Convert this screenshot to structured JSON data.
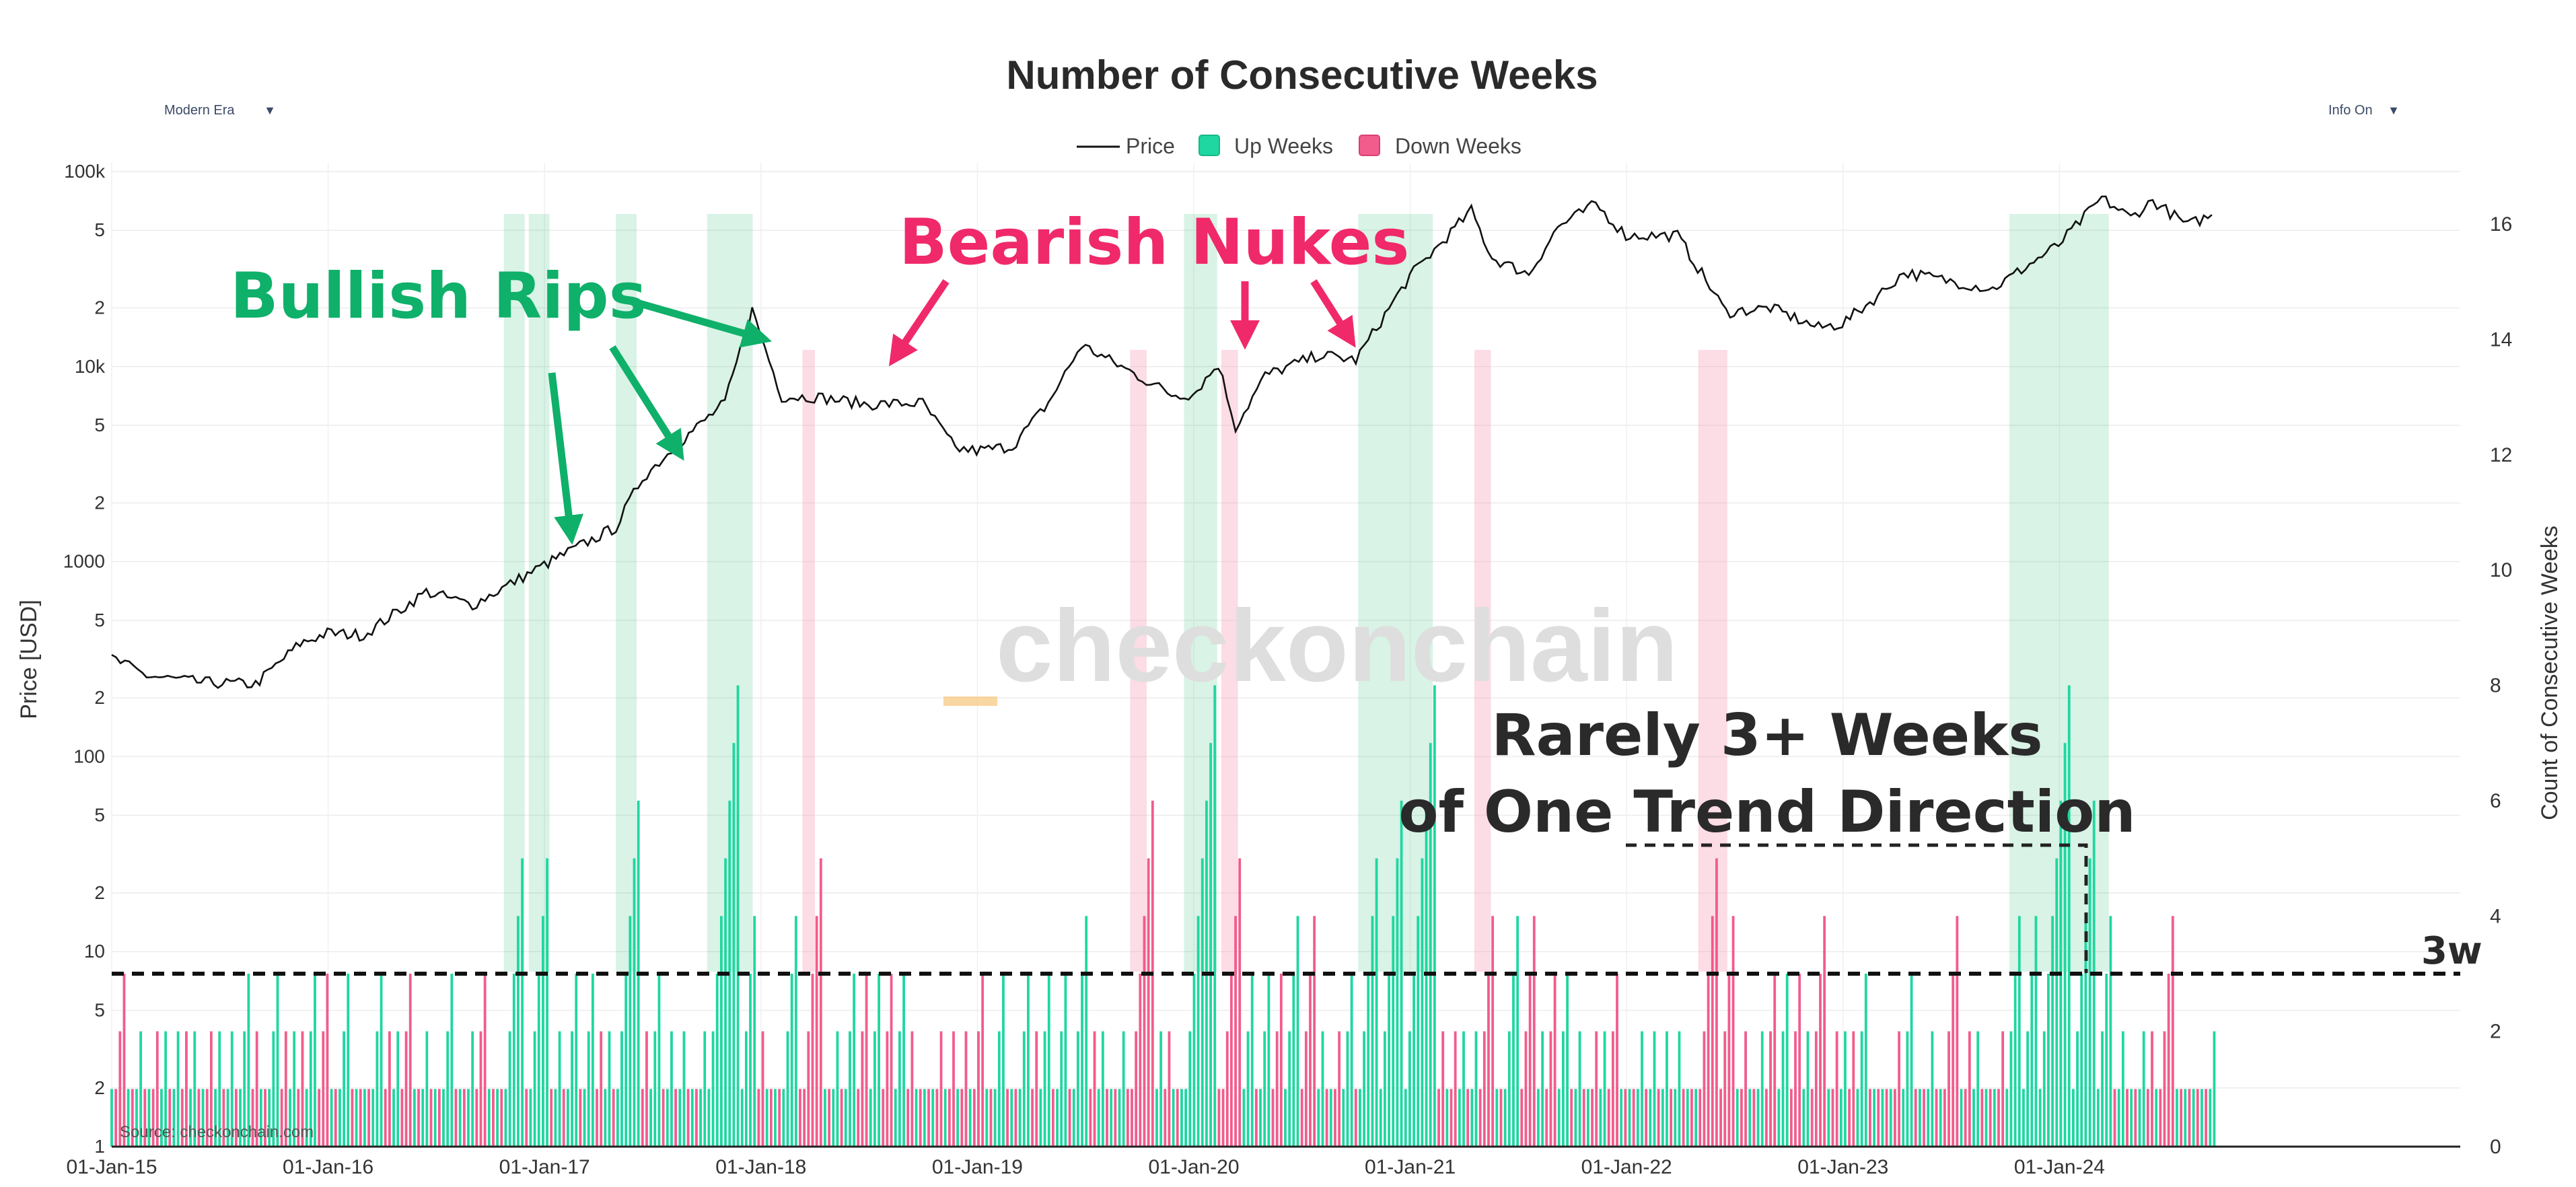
{
  "title": "Number of Consecutive Weeks",
  "controls": {
    "era_select": "Modern Era",
    "info_select": "Info On",
    "arrow_glyph": "▼"
  },
  "legend": {
    "price": "Price",
    "up": "Up Weeks",
    "down": "Down Weeks"
  },
  "colors": {
    "price": "#111111",
    "up": "#1fd7a0",
    "down": "#f25c8c",
    "up_band": "#1cb56a",
    "down_band": "#f7a8bf",
    "bullish": "#0fb06a",
    "bearish": "#f0296a",
    "annot": "#2a2a2a",
    "watermark_bar": "#f7c67a"
  },
  "annotations": {
    "bullish": "Bullish Rips",
    "bearish": "Bearish Nukes",
    "rarely_line1": "Rarely 3+ Weeks",
    "rarely_line2": "of One Trend Direction",
    "threshold": "3w"
  },
  "watermark": "checkonchain",
  "source": "Source: checkonchain.com",
  "chart_data": {
    "type": "line",
    "x_ticks": [
      "01-Jan-15",
      "01-Jan-16",
      "01-Jan-17",
      "01-Jan-18",
      "01-Jan-19",
      "01-Jan-20",
      "01-Jan-21",
      "01-Jan-22",
      "01-Jan-23",
      "01-Jan-24"
    ],
    "x_range": [
      "2015-01-01",
      "2025-01-01"
    ],
    "y_left_label": "Price [USD]",
    "y_left_scale": "log",
    "y_left_ticks": [
      "100k",
      "5",
      "2",
      "10k",
      "5",
      "2",
      "1000",
      "5",
      "2",
      "100",
      "5",
      "2",
      "10",
      "5",
      "2",
      "1"
    ],
    "y_left_range": [
      1,
      100000
    ],
    "y_right_label": "Count of Consecutive Weeks",
    "y_right_ticks": [
      "0",
      "2",
      "4",
      "6",
      "8",
      "10",
      "12",
      "14",
      "16"
    ],
    "y_right_range": [
      0,
      17
    ],
    "threshold_weeks": 3,
    "price": {
      "name": "Price",
      "points": [
        [
          "2015-01-01",
          320
        ],
        [
          "2015-03-01",
          260
        ],
        [
          "2015-06-01",
          240
        ],
        [
          "2015-09-01",
          235
        ],
        [
          "2015-11-15",
          380
        ],
        [
          "2015-12-31",
          430
        ],
        [
          "2016-03-01",
          420
        ],
        [
          "2016-06-15",
          700
        ],
        [
          "2016-09-01",
          600
        ],
        [
          "2016-12-31",
          960
        ],
        [
          "2017-03-01",
          1200
        ],
        [
          "2017-05-01",
          1500
        ],
        [
          "2017-06-15",
          2700
        ],
        [
          "2017-09-01",
          4500
        ],
        [
          "2017-11-01",
          6500
        ],
        [
          "2017-12-17",
          19500
        ],
        [
          "2018-02-05",
          7000
        ],
        [
          "2018-04-01",
          7000
        ],
        [
          "2018-07-01",
          6400
        ],
        [
          "2018-10-01",
          6500
        ],
        [
          "2018-11-25",
          3800
        ],
        [
          "2018-12-31",
          3700
        ],
        [
          "2019-03-01",
          3900
        ],
        [
          "2019-05-01",
          6500
        ],
        [
          "2019-06-26",
          12900
        ],
        [
          "2019-09-01",
          10000
        ],
        [
          "2019-11-25",
          7200
        ],
        [
          "2019-12-31",
          7200
        ],
        [
          "2020-02-12",
          10300
        ],
        [
          "2020-03-12",
          4900
        ],
        [
          "2020-05-01",
          9000
        ],
        [
          "2020-08-01",
          11500
        ],
        [
          "2020-10-01",
          10800
        ],
        [
          "2020-12-31",
          29000
        ],
        [
          "2021-04-14",
          63000
        ],
        [
          "2021-05-19",
          36000
        ],
        [
          "2021-07-20",
          29800
        ],
        [
          "2021-09-07",
          52000
        ],
        [
          "2021-11-10",
          68000
        ],
        [
          "2021-12-31",
          47000
        ],
        [
          "2022-03-28",
          47000
        ],
        [
          "2022-06-18",
          19000
        ],
        [
          "2022-09-01",
          20000
        ],
        [
          "2022-11-21",
          15800
        ],
        [
          "2022-12-31",
          16600
        ],
        [
          "2023-03-01",
          23000
        ],
        [
          "2023-04-14",
          30400
        ],
        [
          "2023-09-11",
          25000
        ],
        [
          "2023-12-31",
          42000
        ],
        [
          "2024-03-13",
          73000
        ],
        [
          "2024-05-01",
          58000
        ],
        [
          "2024-06-07",
          71000
        ],
        [
          "2024-08-05",
          53000
        ],
        [
          "2024-09-15",
          60000
        ]
      ]
    },
    "up_bands": [
      [
        "2016-10-24",
        "2016-11-28"
      ],
      [
        "2016-12-05",
        "2017-01-09"
      ],
      [
        "2017-05-01",
        "2017-06-05"
      ],
      [
        "2017-10-02",
        "2017-12-18"
      ],
      [
        "2019-12-16",
        "2020-02-10"
      ],
      [
        "2020-10-05",
        "2021-02-08"
      ],
      [
        "2023-10-09",
        "2024-03-25"
      ]
    ],
    "down_bands": [
      [
        "2018-03-12",
        "2018-04-02"
      ],
      [
        "2019-09-16",
        "2019-10-14"
      ],
      [
        "2020-02-17",
        "2020-03-16"
      ],
      [
        "2021-04-19",
        "2021-05-17"
      ],
      [
        "2022-05-02",
        "2022-06-20"
      ]
    ]
  }
}
